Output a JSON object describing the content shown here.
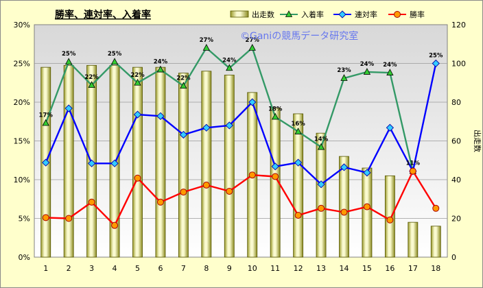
{
  "chart_data": {
    "type": "bar",
    "title": "勝率、連対率、入着率",
    "watermark": "©Ganiの競馬データ研究室",
    "categories": [
      "1",
      "2",
      "3",
      "4",
      "5",
      "6",
      "7",
      "8",
      "9",
      "10",
      "11",
      "12",
      "13",
      "14",
      "15",
      "16",
      "17",
      "18"
    ],
    "y_left_ticks": [
      "0%",
      "5%",
      "10%",
      "15%",
      "20%",
      "25%",
      "30%"
    ],
    "y_right_ticks": [
      "0",
      "20",
      "40",
      "60",
      "80",
      "100",
      "120"
    ],
    "ylim_left": [
      0,
      30
    ],
    "ylim_right": [
      0,
      120
    ],
    "y_right_label": "出走数",
    "legend_position": "top-right",
    "grid": true,
    "series": [
      {
        "name": "出走数",
        "kind": "bar",
        "axis": "right",
        "color": "#c8c860",
        "values": [
          98,
          99,
          99,
          99,
          98,
          98,
          95,
          96,
          94,
          85,
          77,
          74,
          64,
          52,
          46,
          42,
          18,
          16
        ]
      },
      {
        "name": "入着率",
        "kind": "line",
        "axis": "left",
        "color": "#339966",
        "values": [
          17.3,
          25.2,
          22.2,
          25.2,
          22.5,
          24.2,
          22.1,
          27.0,
          24.4,
          27.0,
          18.1,
          16.2,
          14.2,
          23.1,
          23.9,
          23.8,
          11.1,
          null
        ]
      },
      {
        "name": "連対率",
        "kind": "line",
        "axis": "left",
        "color": "#0000ff",
        "values": [
          12.2,
          19.2,
          12.1,
          12.1,
          18.4,
          18.2,
          15.8,
          16.7,
          17.0,
          20.0,
          11.7,
          12.2,
          9.4,
          11.6,
          10.9,
          16.7,
          11.1,
          25.0
        ]
      },
      {
        "name": "勝率",
        "kind": "line",
        "axis": "left",
        "color": "#ff0000",
        "values": [
          5.1,
          5.0,
          7.1,
          4.1,
          10.2,
          7.1,
          8.4,
          9.3,
          8.5,
          10.6,
          10.4,
          5.4,
          6.3,
          5.8,
          6.5,
          4.8,
          11.1,
          6.3
        ]
      }
    ],
    "data_labels": [
      {
        "series": "入着率",
        "index": 0,
        "text": "17%"
      },
      {
        "series": "入着率",
        "index": 1,
        "text": "25%"
      },
      {
        "series": "入着率",
        "index": 2,
        "text": "22%"
      },
      {
        "series": "入着率",
        "index": 3,
        "text": "25%"
      },
      {
        "series": "入着率",
        "index": 4,
        "text": "22%"
      },
      {
        "series": "入着率",
        "index": 5,
        "text": "24%"
      },
      {
        "series": "入着率",
        "index": 6,
        "text": "22%"
      },
      {
        "series": "入着率",
        "index": 7,
        "text": "27%"
      },
      {
        "series": "入着率",
        "index": 8,
        "text": "24%"
      },
      {
        "series": "入着率",
        "index": 9,
        "text": "27%"
      },
      {
        "series": "入着率",
        "index": 10,
        "text": "18%"
      },
      {
        "series": "入着率",
        "index": 11,
        "text": "16%"
      },
      {
        "series": "入着率",
        "index": 12,
        "text": "14%"
      },
      {
        "series": "入着率",
        "index": 13,
        "text": "23%"
      },
      {
        "series": "入着率",
        "index": 14,
        "text": "24%"
      },
      {
        "series": "入着率",
        "index": 15,
        "text": "24%"
      },
      {
        "series": "入着率",
        "index": 16,
        "text": "11%"
      },
      {
        "series": "連対率",
        "index": 17,
        "text": "25%"
      }
    ]
  }
}
